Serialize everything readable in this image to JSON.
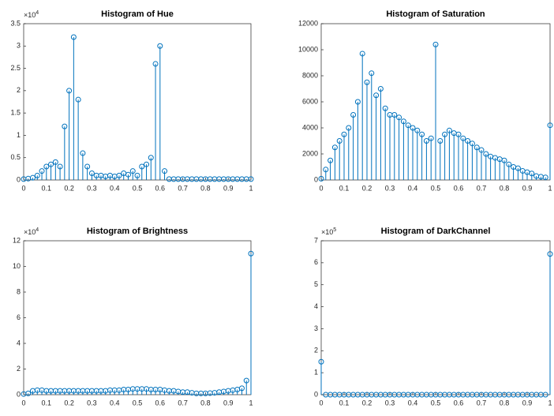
{
  "chart_data": [
    {
      "type": "stem",
      "title": "Histogram of Hue",
      "color": "#0072bd",
      "y_exponent": {
        "base": "×10",
        "exponent": "4"
      },
      "x": [
        0,
        0.02,
        0.04,
        0.06,
        0.08,
        0.1,
        0.12,
        0.14,
        0.16,
        0.18,
        0.2,
        0.22,
        0.24,
        0.26,
        0.28,
        0.3,
        0.32,
        0.34,
        0.36,
        0.38,
        0.4,
        0.42,
        0.44,
        0.46,
        0.48,
        0.5,
        0.52,
        0.54,
        0.56,
        0.58,
        0.6,
        0.62,
        0.64,
        0.66,
        0.68,
        0.7,
        0.72,
        0.74,
        0.76,
        0.78,
        0.8,
        0.82,
        0.84,
        0.86,
        0.88,
        0.9,
        0.92,
        0.94,
        0.96,
        0.98,
        1
      ],
      "values": [
        0.02,
        0.03,
        0.05,
        0.1,
        0.2,
        0.3,
        0.35,
        0.4,
        0.3,
        1.2,
        2.0,
        3.2,
        1.8,
        0.6,
        0.3,
        0.15,
        0.1,
        0.1,
        0.08,
        0.1,
        0.08,
        0.1,
        0.15,
        0.12,
        0.2,
        0.1,
        0.3,
        0.35,
        0.5,
        2.6,
        3.0,
        0.2,
        0.02,
        0.02,
        0.02,
        0.02,
        0.02,
        0.02,
        0.02,
        0.02,
        0.02,
        0.02,
        0.02,
        0.02,
        0.02,
        0.02,
        0.02,
        0.02,
        0.02,
        0.02,
        0.02
      ],
      "xlim": [
        0,
        1
      ],
      "xticks": [
        0,
        0.1,
        0.2,
        0.3,
        0.4,
        0.5,
        0.6,
        0.7,
        0.8,
        0.9,
        1
      ],
      "ylim": [
        0,
        3.5
      ],
      "yticks": [
        0,
        0.5,
        1,
        1.5,
        2,
        2.5,
        3,
        3.5
      ]
    },
    {
      "type": "stem",
      "title": "Histogram of Saturation",
      "color": "#0072bd",
      "x": [
        0,
        0.02,
        0.04,
        0.06,
        0.08,
        0.1,
        0.12,
        0.14,
        0.16,
        0.18,
        0.2,
        0.22,
        0.24,
        0.26,
        0.28,
        0.3,
        0.32,
        0.34,
        0.36,
        0.38,
        0.4,
        0.42,
        0.44,
        0.46,
        0.48,
        0.5,
        0.52,
        0.54,
        0.56,
        0.58,
        0.6,
        0.62,
        0.64,
        0.66,
        0.68,
        0.7,
        0.72,
        0.74,
        0.76,
        0.78,
        0.8,
        0.82,
        0.84,
        0.86,
        0.88,
        0.9,
        0.92,
        0.94,
        0.96,
        0.98,
        1
      ],
      "values": [
        100,
        800,
        1500,
        2500,
        3000,
        3500,
        4000,
        5000,
        6000,
        9700,
        7500,
        8200,
        6500,
        7000,
        5500,
        5000,
        5000,
        4800,
        4500,
        4200,
        4000,
        3800,
        3500,
        3000,
        3200,
        10400,
        3000,
        3500,
        3800,
        3600,
        3500,
        3200,
        3000,
        2800,
        2500,
        2300,
        2000,
        1800,
        1700,
        1600,
        1500,
        1200,
        1000,
        900,
        700,
        600,
        500,
        300,
        250,
        200,
        4200
      ],
      "xlim": [
        0,
        1
      ],
      "xticks": [
        0,
        0.1,
        0.2,
        0.3,
        0.4,
        0.5,
        0.6,
        0.7,
        0.8,
        0.9,
        1
      ],
      "ylim": [
        0,
        12000
      ],
      "yticks": [
        0,
        2000,
        4000,
        6000,
        8000,
        10000,
        12000
      ]
    },
    {
      "type": "stem",
      "title": "Histogram of Brightness",
      "color": "#0072bd",
      "y_exponent": {
        "base": "×10",
        "exponent": "4"
      },
      "x": [
        0,
        0.02,
        0.04,
        0.06,
        0.08,
        0.1,
        0.12,
        0.14,
        0.16,
        0.18,
        0.2,
        0.22,
        0.24,
        0.26,
        0.28,
        0.3,
        0.32,
        0.34,
        0.36,
        0.38,
        0.4,
        0.42,
        0.44,
        0.46,
        0.48,
        0.5,
        0.52,
        0.54,
        0.56,
        0.58,
        0.6,
        0.62,
        0.64,
        0.66,
        0.68,
        0.7,
        0.72,
        0.74,
        0.76,
        0.78,
        0.8,
        0.82,
        0.84,
        0.86,
        0.88,
        0.9,
        0.92,
        0.94,
        0.96,
        0.98,
        1
      ],
      "values": [
        0.05,
        0.1,
        0.3,
        0.35,
        0.35,
        0.3,
        0.3,
        0.3,
        0.3,
        0.3,
        0.3,
        0.3,
        0.3,
        0.3,
        0.3,
        0.3,
        0.3,
        0.3,
        0.3,
        0.35,
        0.35,
        0.35,
        0.4,
        0.4,
        0.45,
        0.45,
        0.45,
        0.45,
        0.4,
        0.4,
        0.4,
        0.35,
        0.3,
        0.3,
        0.25,
        0.2,
        0.2,
        0.15,
        0.1,
        0.1,
        0.1,
        0.12,
        0.15,
        0.2,
        0.25,
        0.3,
        0.35,
        0.4,
        0.5,
        1.1,
        11
      ],
      "xlim": [
        0,
        1
      ],
      "xticks": [
        0,
        0.1,
        0.2,
        0.3,
        0.4,
        0.5,
        0.6,
        0.7,
        0.8,
        0.9,
        1
      ],
      "ylim": [
        0,
        12
      ],
      "yticks": [
        0,
        2,
        4,
        6,
        8,
        10,
        12
      ]
    },
    {
      "type": "stem",
      "title": "Histogram of DarkChannel",
      "color": "#0072bd",
      "y_exponent": {
        "base": "×10",
        "exponent": "5"
      },
      "x": [
        0,
        0.02,
        0.04,
        0.06,
        0.08,
        0.1,
        0.12,
        0.14,
        0.16,
        0.18,
        0.2,
        0.22,
        0.24,
        0.26,
        0.28,
        0.3,
        0.32,
        0.34,
        0.36,
        0.38,
        0.4,
        0.42,
        0.44,
        0.46,
        0.48,
        0.5,
        0.52,
        0.54,
        0.56,
        0.58,
        0.6,
        0.62,
        0.64,
        0.66,
        0.68,
        0.7,
        0.72,
        0.74,
        0.76,
        0.78,
        0.8,
        0.82,
        0.84,
        0.86,
        0.88,
        0.9,
        0.92,
        0.94,
        0.96,
        0.98,
        1
      ],
      "values": [
        1.5,
        0,
        0,
        0,
        0,
        0,
        0,
        0,
        0,
        0,
        0,
        0,
        0,
        0,
        0,
        0,
        0,
        0,
        0,
        0,
        0,
        0,
        0,
        0,
        0,
        0,
        0,
        0,
        0,
        0,
        0,
        0,
        0,
        0,
        0,
        0,
        0,
        0,
        0,
        0,
        0,
        0,
        0,
        0,
        0,
        0,
        0,
        0,
        0,
        0,
        6.4
      ],
      "xlim": [
        0,
        1
      ],
      "xticks": [
        0,
        0.1,
        0.2,
        0.3,
        0.4,
        0.5,
        0.6,
        0.7,
        0.8,
        0.9,
        1
      ],
      "ylim": [
        0,
        7
      ],
      "yticks": [
        0,
        1,
        2,
        3,
        4,
        5,
        6,
        7
      ]
    }
  ]
}
